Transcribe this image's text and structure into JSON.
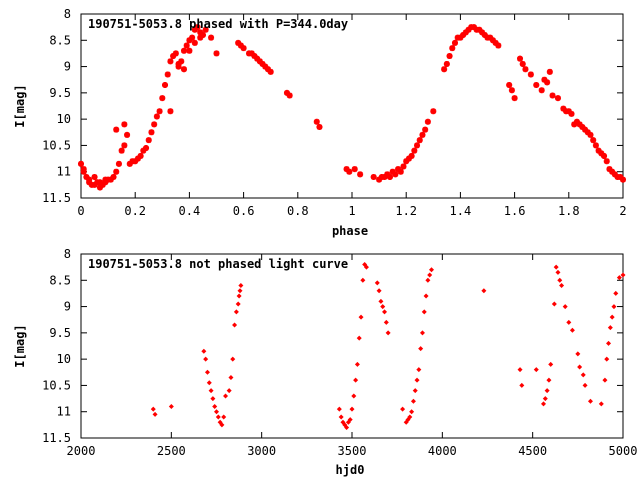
{
  "colors": {
    "points": "#ff0000",
    "axes": "#000000",
    "background": "#ffffff"
  },
  "chart_data": [
    {
      "type": "scatter",
      "title": "190751-5053.8 phased with P=344.0day",
      "xlabel": "phase",
      "ylabel": "I[mag]",
      "xlim": [
        0,
        2
      ],
      "ylim": [
        8,
        11.5
      ],
      "y_inverted": true,
      "grid": false,
      "xticks": [
        0,
        0.2,
        0.4,
        0.6,
        0.8,
        1,
        1.2,
        1.4,
        1.6,
        1.8,
        2
      ],
      "xtick_labels": [
        "0",
        "0.2",
        "0.4",
        "0.6",
        "0.8",
        "1",
        "1.2",
        "1.4",
        "1.6",
        "1.8",
        "2"
      ],
      "yticks": [
        8,
        8.5,
        9,
        9.5,
        10,
        10.5,
        11,
        11.5
      ],
      "ytick_labels": [
        "8",
        "8.5",
        "9",
        "9.5",
        "10",
        "10.5",
        "11",
        "11.5"
      ],
      "series": [
        {
          "color": "#ff0000",
          "x": [
            0.0,
            0.01,
            0.02,
            0.03,
            0.04,
            0.05,
            0.06,
            0.07,
            0.08,
            0.09,
            0.1,
            0.11,
            0.12,
            0.13,
            0.14,
            0.15,
            0.16,
            0.17,
            0.18,
            0.19,
            0.2,
            0.21,
            0.22,
            0.23,
            0.24,
            0.25,
            0.26,
            0.27,
            0.28,
            0.29,
            0.3,
            0.31,
            0.32,
            0.33,
            0.34,
            0.35,
            0.36,
            0.37,
            0.38,
            0.39,
            0.4,
            0.41,
            0.42,
            0.43,
            0.44,
            0.45,
            0.46,
            0.48,
            0.5,
            0.58,
            0.59,
            0.6,
            0.62,
            0.63,
            0.64,
            0.65,
            0.66,
            0.67,
            0.68,
            0.69,
            0.7,
            0.76,
            0.77,
            0.87,
            0.88,
            0.98,
            0.99,
            0.01,
            0.03,
            0.05,
            0.07,
            0.09,
            0.13,
            0.16,
            0.33,
            0.36,
            0.38,
            0.4,
            0.42,
            0.44
          ],
          "y": [
            10.85,
            10.95,
            11.1,
            11.2,
            11.25,
            11.25,
            11.2,
            11.3,
            11.25,
            11.2,
            11.15,
            11.15,
            11.1,
            11.0,
            10.85,
            10.6,
            10.5,
            10.3,
            10.85,
            10.8,
            10.8,
            10.75,
            10.7,
            10.6,
            10.55,
            10.4,
            10.25,
            10.1,
            9.95,
            9.85,
            9.6,
            9.35,
            9.15,
            8.9,
            8.8,
            8.75,
            9.0,
            8.9,
            8.7,
            8.6,
            8.5,
            8.45,
            8.3,
            8.25,
            8.35,
            8.4,
            8.3,
            8.45,
            8.75,
            8.55,
            8.6,
            8.65,
            8.75,
            8.75,
            8.8,
            8.85,
            8.9,
            8.95,
            9.0,
            9.05,
            9.1,
            9.5,
            9.55,
            10.05,
            10.15,
            10.95,
            11.0,
            11.0,
            11.15,
            11.1,
            11.2,
            11.15,
            10.2,
            10.1,
            9.85,
            8.95,
            9.05,
            8.7,
            8.55,
            8.45
          ]
        },
        {
          "color": "#ff0000",
          "x": [
            1.01,
            1.03,
            1.08,
            1.1,
            1.11,
            1.12,
            1.13,
            1.14,
            1.15,
            1.16,
            1.17,
            1.18,
            1.19,
            1.2,
            1.21,
            1.22,
            1.23,
            1.24,
            1.25,
            1.26,
            1.27,
            1.28,
            1.3,
            1.34,
            1.35,
            1.36,
            1.37,
            1.38,
            1.39,
            1.4,
            1.41,
            1.42,
            1.43,
            1.44,
            1.45,
            1.46,
            1.47,
            1.48,
            1.49,
            1.5,
            1.51,
            1.52,
            1.53,
            1.54,
            1.58,
            1.59,
            1.6,
            1.62,
            1.63,
            1.64,
            1.66,
            1.68,
            1.7,
            1.71,
            1.72,
            1.73,
            1.74,
            1.76,
            1.78,
            1.79,
            1.8,
            1.81,
            1.82,
            1.83,
            1.84,
            1.85,
            1.86,
            1.87,
            1.88,
            1.89,
            1.9,
            1.91,
            1.92,
            1.93,
            1.94,
            1.95,
            1.96,
            1.97,
            1.98,
            1.99,
            2.0
          ],
          "y": [
            10.95,
            11.05,
            11.1,
            11.15,
            11.1,
            11.1,
            11.05,
            11.1,
            11.0,
            11.05,
            10.95,
            11.0,
            10.9,
            10.8,
            10.75,
            10.7,
            10.6,
            10.5,
            10.4,
            10.3,
            10.2,
            10.05,
            9.85,
            9.05,
            8.95,
            8.8,
            8.65,
            8.55,
            8.45,
            8.45,
            8.4,
            8.35,
            8.3,
            8.25,
            8.25,
            8.3,
            8.3,
            8.35,
            8.4,
            8.45,
            8.45,
            8.5,
            8.55,
            8.6,
            9.35,
            9.45,
            9.6,
            8.85,
            8.95,
            9.05,
            9.15,
            9.35,
            9.45,
            9.25,
            9.3,
            9.1,
            9.55,
            9.6,
            9.8,
            9.85,
            9.85,
            9.9,
            10.1,
            10.05,
            10.1,
            10.15,
            10.2,
            10.25,
            10.3,
            10.4,
            10.5,
            10.6,
            10.65,
            10.7,
            10.8,
            10.95,
            11.0,
            11.05,
            11.1,
            11.1,
            11.15
          ]
        }
      ]
    },
    {
      "type": "scatter",
      "title": "190751-5053.8 not phased light curve",
      "xlabel": "hjd0",
      "ylabel": "I[mag]",
      "xlim": [
        2000,
        5000
      ],
      "ylim": [
        8,
        11.5
      ],
      "y_inverted": true,
      "grid": false,
      "xticks": [
        2000,
        2500,
        3000,
        3500,
        4000,
        4500,
        5000
      ],
      "xtick_labels": [
        "2000",
        "2500",
        "3000",
        "3500",
        "4000",
        "4500",
        "5000"
      ],
      "yticks": [
        8,
        8.5,
        9,
        9.5,
        10,
        10.5,
        11,
        11.5
      ],
      "ytick_labels": [
        "8",
        "8.5",
        "9",
        "9.5",
        "10",
        "10.5",
        "11",
        "11.5"
      ],
      "series": [
        {
          "color": "#ff0000",
          "x": [
            2400,
            2410,
            2500,
            2680,
            2690,
            2700,
            2710,
            2720,
            2730,
            2740,
            2750,
            2760,
            2770,
            2780,
            2790,
            2800,
            2820,
            2830,
            2840,
            2850,
            2860,
            2870,
            2875,
            2880,
            2885,
            3430,
            3440,
            3450,
            3460,
            3470,
            3480,
            3490,
            3500,
            3510,
            3520,
            3530,
            3540,
            3550,
            3560,
            3570,
            3580,
            3640,
            3650,
            3660,
            3670,
            3680,
            3690,
            3700,
            3780,
            3800,
            3810,
            3820,
            3830,
            3840,
            3850,
            3860,
            3870,
            3880,
            3890,
            3900,
            3910,
            3920,
            3930,
            3940,
            4230,
            4430,
            4440,
            4520,
            4560,
            4570,
            4580,
            4590,
            4600,
            4620,
            4630,
            4640,
            4650,
            4660,
            4680,
            4700,
            4720,
            4750,
            4760,
            4780,
            4790,
            4820,
            4880,
            4900,
            4910,
            4920,
            4930,
            4940,
            4950,
            4960,
            4980,
            5000
          ],
          "y": [
            10.95,
            11.05,
            10.9,
            9.85,
            10.0,
            10.25,
            10.45,
            10.6,
            10.75,
            10.9,
            11.0,
            11.1,
            11.2,
            11.25,
            11.1,
            10.7,
            10.6,
            10.35,
            10.0,
            9.35,
            9.1,
            8.95,
            8.8,
            8.7,
            8.6,
            10.95,
            11.1,
            11.2,
            11.25,
            11.3,
            11.2,
            11.15,
            10.95,
            10.7,
            10.4,
            10.1,
            9.6,
            9.2,
            8.5,
            8.2,
            8.25,
            8.55,
            8.7,
            8.9,
            9.0,
            9.1,
            9.3,
            9.5,
            10.95,
            11.2,
            11.15,
            11.1,
            11.0,
            10.8,
            10.6,
            10.4,
            10.2,
            9.8,
            9.5,
            9.1,
            8.8,
            8.5,
            8.4,
            8.3,
            8.7,
            10.2,
            10.5,
            10.2,
            10.85,
            10.75,
            10.6,
            10.4,
            10.1,
            8.95,
            8.25,
            8.35,
            8.5,
            8.6,
            9.0,
            9.3,
            9.45,
            9.9,
            10.15,
            10.3,
            10.5,
            10.8,
            10.85,
            10.4,
            10.0,
            9.7,
            9.4,
            9.2,
            9.0,
            8.75,
            8.45,
            8.4
          ]
        }
      ]
    }
  ]
}
